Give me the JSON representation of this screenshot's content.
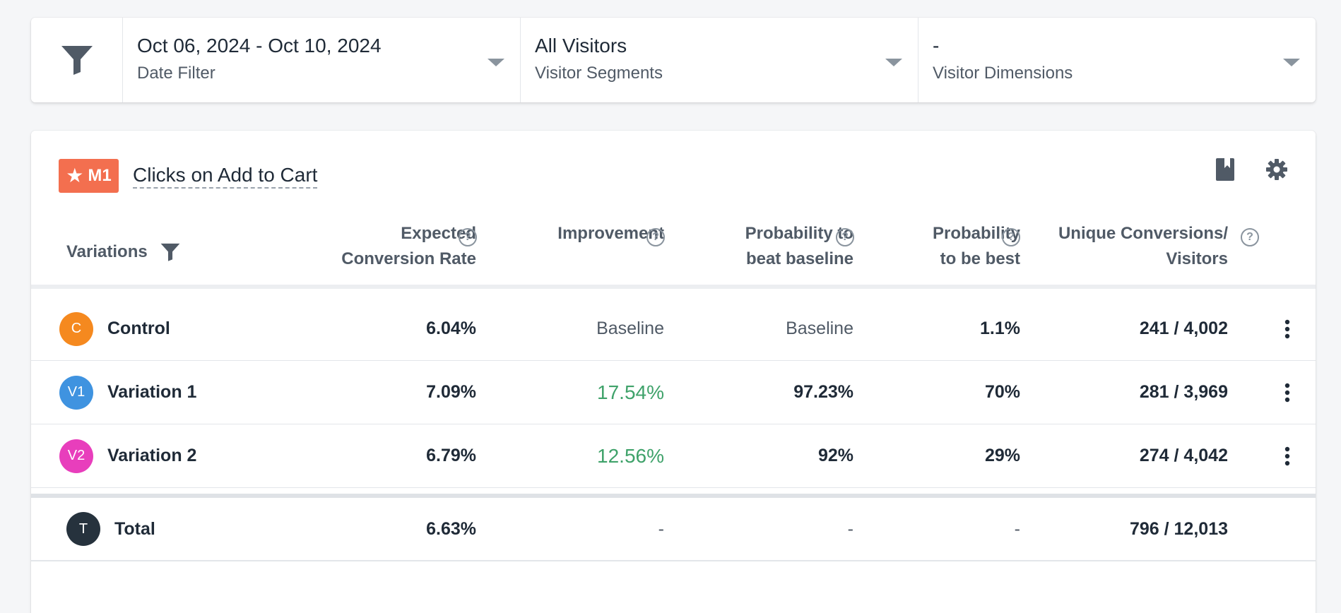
{
  "filters": [
    {
      "value": "Oct 06, 2024 - Oct 10, 2024",
      "label": "Date Filter"
    },
    {
      "value": "All Visitors",
      "label": "Visitor Segments"
    },
    {
      "value": "-",
      "label": "Visitor Dimensions"
    }
  ],
  "metric": {
    "badge": "M1",
    "title": "Clicks on Add to Cart"
  },
  "table": {
    "headers": {
      "variations": "Variations",
      "expected_line1": "Expected",
      "expected_line2": "Conversion Rate",
      "improvement": "Improvement",
      "beat_line1": "Probability to",
      "beat_line2": "beat baseline",
      "best_line1": "Probability",
      "best_line2": "to be best",
      "unique_line1": "Unique Conversions/",
      "unique_line2": "Visitors"
    },
    "rows": [
      {
        "avatar": "C",
        "color": "#f5891f",
        "name": "Control",
        "expected": "6.04%",
        "improvement": "Baseline",
        "beat": "Baseline",
        "best": "1.1%",
        "unique": "241 / 4,002"
      },
      {
        "avatar": "V1",
        "color": "#3f93e0",
        "name": "Variation 1",
        "expected": "7.09%",
        "improvement": "17.54%",
        "beat": "97.23%",
        "best": "70%",
        "unique": "281 / 3,969"
      },
      {
        "avatar": "V2",
        "color": "#e83ebc",
        "name": "Variation 2",
        "expected": "6.79%",
        "improvement": "12.56%",
        "beat": "92%",
        "best": "29%",
        "unique": "274 / 4,042"
      }
    ],
    "total": {
      "avatar": "T",
      "color": "#26323d",
      "name": "Total",
      "expected": "6.63%",
      "improvement": "-",
      "beat": "-",
      "best": "-",
      "unique": "796 / 12,013"
    }
  },
  "colors": {
    "accent": "#f36f4f",
    "positive": "#3fa26a"
  }
}
